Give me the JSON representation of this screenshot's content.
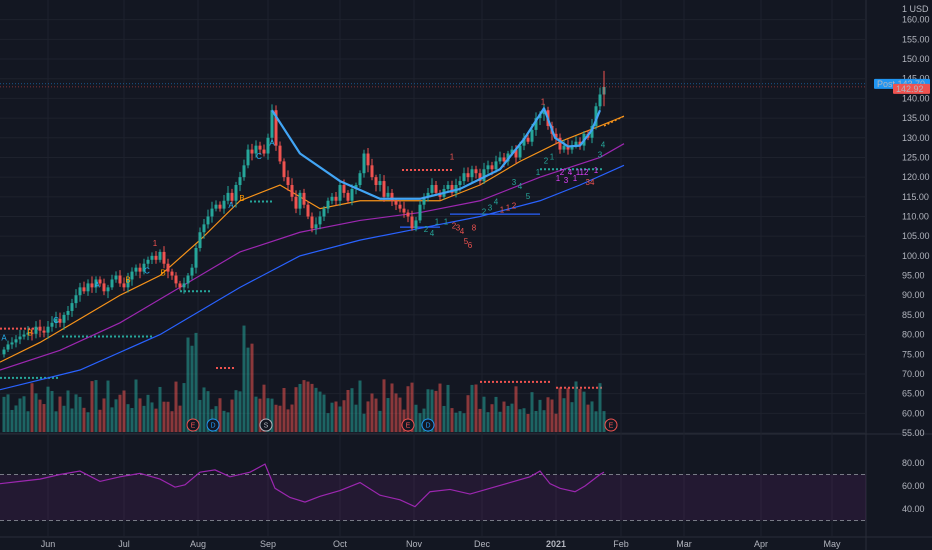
{
  "chart_data": {
    "type": "candlestick",
    "currency": "USD",
    "y_axis_unit_label": "1",
    "price_ylim": [
      55,
      165
    ],
    "price_ticks": [
      "160.00",
      "155.00",
      "150.00",
      "145.00",
      "140.00",
      "135.00",
      "130.00",
      "125.00",
      "120.00",
      "115.00",
      "110.00",
      "105.00",
      "100.00",
      "95.00",
      "90.00",
      "85.00",
      "80.00",
      "75.00",
      "70.00",
      "65.00",
      "60.00",
      "55.00"
    ],
    "x_ticks": [
      "Jun",
      "Jul",
      "Aug",
      "Sep",
      "Oct",
      "Nov",
      "Dec",
      "2021",
      "Feb",
      "Mar",
      "Apr",
      "May"
    ],
    "last_price_tags": [
      {
        "label": "Post",
        "value": "143.70",
        "color": "#2196f3"
      },
      {
        "label": "",
        "value": "142.92",
        "color": "#ef5350"
      }
    ],
    "close_series": [
      [
        0,
        75
      ],
      [
        4,
        76.2
      ],
      [
        8,
        77.5
      ],
      [
        12,
        78
      ],
      [
        16,
        78.8
      ],
      [
        20,
        79.5
      ],
      [
        24,
        80
      ],
      [
        28,
        80.5
      ],
      [
        32,
        80.2
      ],
      [
        36,
        82
      ],
      [
        40,
        81
      ],
      [
        44,
        80.5
      ],
      [
        48,
        82
      ],
      [
        52,
        83
      ],
      [
        56,
        84
      ],
      [
        60,
        83
      ],
      [
        64,
        85
      ],
      [
        68,
        86
      ],
      [
        72,
        88
      ],
      [
        76,
        90
      ],
      [
        80,
        92
      ],
      [
        84,
        91
      ],
      [
        88,
        93
      ],
      [
        92,
        92
      ],
      [
        96,
        94
      ],
      [
        100,
        93
      ],
      [
        104,
        91
      ],
      [
        108,
        92
      ],
      [
        112,
        94
      ],
      [
        116,
        95
      ],
      [
        120,
        93
      ],
      [
        124,
        92
      ],
      [
        128,
        94
      ],
      [
        132,
        96
      ],
      [
        136,
        97
      ],
      [
        140,
        96
      ],
      [
        144,
        98
      ],
      [
        148,
        99
      ],
      [
        152,
        100
      ],
      [
        156,
        99
      ],
      [
        160,
        101
      ],
      [
        164,
        98
      ],
      [
        168,
        96
      ],
      [
        172,
        95
      ],
      [
        176,
        93
      ],
      [
        180,
        92
      ],
      [
        184,
        93
      ],
      [
        188,
        95
      ],
      [
        192,
        97
      ],
      [
        196,
        102
      ],
      [
        200,
        106
      ],
      [
        204,
        108
      ],
      [
        208,
        110
      ],
      [
        212,
        112
      ],
      [
        216,
        113
      ],
      [
        220,
        112
      ],
      [
        224,
        114
      ],
      [
        228,
        116
      ],
      [
        232,
        114
      ],
      [
        236,
        118
      ],
      [
        240,
        120
      ],
      [
        244,
        123
      ],
      [
        248,
        127
      ],
      [
        252,
        126
      ],
      [
        256,
        128
      ],
      [
        260,
        127
      ],
      [
        264,
        126
      ],
      [
        268,
        130
      ],
      [
        272,
        137
      ],
      [
        276,
        128
      ],
      [
        280,
        124
      ],
      [
        284,
        120
      ],
      [
        288,
        118
      ],
      [
        292,
        115
      ],
      [
        296,
        112
      ],
      [
        300,
        116
      ],
      [
        304,
        113
      ],
      [
        308,
        110
      ],
      [
        312,
        107
      ],
      [
        316,
        108
      ],
      [
        320,
        110
      ],
      [
        324,
        112
      ],
      [
        328,
        114
      ],
      [
        332,
        115
      ],
      [
        336,
        114
      ],
      [
        340,
        118
      ],
      [
        344,
        116
      ],
      [
        348,
        114
      ],
      [
        352,
        117
      ],
      [
        356,
        118
      ],
      [
        360,
        121
      ],
      [
        364,
        126
      ],
      [
        368,
        123
      ],
      [
        372,
        120
      ],
      [
        376,
        118
      ],
      [
        380,
        119
      ],
      [
        384,
        115
      ],
      [
        388,
        116
      ],
      [
        392,
        114
      ],
      [
        396,
        113
      ],
      [
        400,
        112
      ],
      [
        404,
        111
      ],
      [
        408,
        110
      ],
      [
        412,
        107
      ],
      [
        416,
        109
      ],
      [
        420,
        113
      ],
      [
        424,
        115
      ],
      [
        428,
        116
      ],
      [
        432,
        118
      ],
      [
        436,
        116
      ],
      [
        440,
        115
      ],
      [
        444,
        117
      ],
      [
        448,
        118
      ],
      [
        452,
        116
      ],
      [
        456,
        118
      ],
      [
        460,
        119
      ],
      [
        464,
        121
      ],
      [
        468,
        120
      ],
      [
        472,
        122
      ],
      [
        476,
        121
      ],
      [
        480,
        119
      ],
      [
        484,
        122
      ],
      [
        488,
        123
      ],
      [
        492,
        122
      ],
      [
        496,
        124
      ],
      [
        500,
        125
      ],
      [
        504,
        124
      ],
      [
        508,
        126
      ],
      [
        512,
        127
      ],
      [
        516,
        125
      ],
      [
        520,
        128
      ],
      [
        524,
        130
      ],
      [
        528,
        129
      ],
      [
        532,
        132
      ],
      [
        536,
        135
      ],
      [
        540,
        136
      ],
      [
        544,
        137
      ],
      [
        548,
        133
      ],
      [
        552,
        131
      ],
      [
        556,
        130
      ],
      [
        560,
        127
      ],
      [
        564,
        128
      ],
      [
        568,
        127
      ],
      [
        572,
        128
      ],
      [
        576,
        129
      ],
      [
        580,
        128
      ],
      [
        584,
        131
      ],
      [
        588,
        130
      ],
      [
        592,
        133
      ],
      [
        596,
        138
      ],
      [
        600,
        141
      ],
      [
        604,
        142.9
      ]
    ],
    "moving_averages": [
      {
        "name": "",
        "color": "#f7931a",
        "values": [
          [
            0,
            73
          ],
          [
            40,
            78
          ],
          [
            80,
            84
          ],
          [
            120,
            90
          ],
          [
            160,
            95
          ],
          [
            200,
            104
          ],
          [
            240,
            114
          ],
          [
            280,
            118
          ],
          [
            320,
            112
          ],
          [
            360,
            114
          ],
          [
            400,
            114
          ],
          [
            440,
            114
          ],
          [
            480,
            118
          ],
          [
            520,
            124
          ],
          [
            560,
            129
          ],
          [
            600,
            133
          ],
          [
            624,
            135.5
          ]
        ]
      },
      {
        "name": "",
        "color": "#9c27b0",
        "values": [
          [
            0,
            71
          ],
          [
            60,
            76
          ],
          [
            120,
            83
          ],
          [
            180,
            92
          ],
          [
            240,
            101
          ],
          [
            300,
            106
          ],
          [
            360,
            109
          ],
          [
            420,
            111
          ],
          [
            480,
            114
          ],
          [
            540,
            120
          ],
          [
            600,
            125
          ],
          [
            624,
            128.5
          ]
        ]
      },
      {
        "name": "",
        "color": "#2962ff",
        "values": [
          [
            0,
            66
          ],
          [
            80,
            71
          ],
          [
            160,
            80
          ],
          [
            240,
            92
          ],
          [
            300,
            100
          ],
          [
            360,
            104
          ],
          [
            420,
            107
          ],
          [
            480,
            110
          ],
          [
            540,
            114
          ],
          [
            580,
            118
          ],
          [
            624,
            123
          ]
        ]
      }
    ],
    "cup_pattern": {
      "color": "#42a5f5",
      "points": [
        [
          272,
          137
        ],
        [
          300,
          126
        ],
        [
          340,
          119
        ],
        [
          380,
          114.5
        ],
        [
          420,
          114.5
        ],
        [
          460,
          117
        ],
        [
          500,
          122
        ],
        [
          525,
          130
        ],
        [
          544,
          137.5
        ],
        [
          555,
          130
        ],
        [
          568,
          127.8
        ],
        [
          580,
          128
        ],
        [
          592,
          132
        ],
        [
          600,
          137
        ]
      ]
    },
    "earnings_markers": [
      {
        "x": 193,
        "label": "E",
        "color": "#ef5350"
      },
      {
        "x": 213,
        "label": "D",
        "color": "#2196f3"
      },
      {
        "x": 266,
        "label": "S",
        "color": "#b2b5be"
      },
      {
        "x": 408,
        "label": "E",
        "color": "#ef5350"
      },
      {
        "x": 428,
        "label": "D",
        "color": "#2196f3"
      },
      {
        "x": 611,
        "label": "E",
        "color": "#ef5350"
      }
    ],
    "rsi": {
      "ylim": [
        20,
        100
      ],
      "ticks": [
        "80.00",
        "60.00",
        "40.00"
      ],
      "bands": [
        70,
        30
      ],
      "color": "#9c27b0",
      "values": [
        [
          0,
          62
        ],
        [
          20,
          64
        ],
        [
          40,
          66
        ],
        [
          60,
          70
        ],
        [
          80,
          73
        ],
        [
          100,
          64
        ],
        [
          120,
          68
        ],
        [
          140,
          71
        ],
        [
          160,
          66
        ],
        [
          175,
          59
        ],
        [
          185,
          61
        ],
        [
          200,
          72
        ],
        [
          215,
          74
        ],
        [
          230,
          68
        ],
        [
          250,
          72
        ],
        [
          265,
          79
        ],
        [
          275,
          58
        ],
        [
          290,
          50
        ],
        [
          305,
          46
        ],
        [
          320,
          51
        ],
        [
          340,
          56
        ],
        [
          360,
          63
        ],
        [
          380,
          52
        ],
        [
          400,
          48
        ],
        [
          415,
          42
        ],
        [
          430,
          55
        ],
        [
          450,
          57
        ],
        [
          470,
          53
        ],
        [
          490,
          58
        ],
        [
          510,
          63
        ],
        [
          530,
          68
        ],
        [
          540,
          73
        ],
        [
          550,
          62
        ],
        [
          560,
          58
        ],
        [
          575,
          55
        ],
        [
          585,
          60
        ],
        [
          600,
          70
        ],
        [
          604,
          72
        ]
      ]
    },
    "annotation_labels": [
      {
        "x": 4,
        "y": 78.5,
        "text": "A",
        "color": "#29b6f6"
      },
      {
        "x": 30,
        "y": 79.8,
        "text": "B",
        "color": "#ff9800"
      },
      {
        "x": 56,
        "y": 83,
        "text": "C",
        "color": "#29b6f6"
      },
      {
        "x": 97,
        "y": 92,
        "text": "A",
        "color": "#29b6f6"
      },
      {
        "x": 128,
        "y": 93.2,
        "text": "B",
        "color": "#ff9800"
      },
      {
        "x": 147,
        "y": 95.5,
        "text": "C",
        "color": "#29b6f6"
      },
      {
        "x": 155,
        "y": 102.5,
        "text": "1",
        "color": "#ef5350"
      },
      {
        "x": 163,
        "y": 95,
        "text": "B",
        "color": "#ff9800"
      },
      {
        "x": 231,
        "y": 112.2,
        "text": "A",
        "color": "#29b6f6"
      },
      {
        "x": 242,
        "y": 114,
        "text": "B",
        "color": "#ff9800"
      },
      {
        "x": 259,
        "y": 124.6,
        "text": "C",
        "color": "#29b6f6"
      },
      {
        "x": 272,
        "y": 128,
        "text": "A",
        "color": "#29b6f6"
      },
      {
        "x": 452,
        "y": 124.5,
        "text": "1",
        "color": "#ef5350"
      },
      {
        "x": 543,
        "y": 138.5,
        "text": "1",
        "color": "#ef5350"
      },
      {
        "x": 426,
        "y": 106,
        "text": "2",
        "color": "#26a69a"
      },
      {
        "x": 432,
        "y": 105,
        "text": "4",
        "color": "#26a69a"
      },
      {
        "x": 437,
        "y": 108,
        "text": "1",
        "color": "#26a69a"
      },
      {
        "x": 446,
        "y": 108,
        "text": "1",
        "color": "#26a69a"
      },
      {
        "x": 454,
        "y": 107,
        "text": "2",
        "color": "#ef5350"
      },
      {
        "x": 458,
        "y": 106.5,
        "text": "3",
        "color": "#ef5350"
      },
      {
        "x": 462,
        "y": 105.5,
        "text": "4",
        "color": "#ef5350"
      },
      {
        "x": 466,
        "y": 103,
        "text": "5",
        "color": "#ef5350"
      },
      {
        "x": 470,
        "y": 102,
        "text": "6",
        "color": "#ef5350"
      },
      {
        "x": 474,
        "y": 106.5,
        "text": "8",
        "color": "#ef5350"
      },
      {
        "x": 484,
        "y": 110.5,
        "text": "2",
        "color": "#26a69a"
      },
      {
        "x": 490,
        "y": 111.5,
        "text": "3",
        "color": "#26a69a"
      },
      {
        "x": 496,
        "y": 113,
        "text": "4",
        "color": "#26a69a"
      },
      {
        "x": 502,
        "y": 111,
        "text": "1",
        "color": "#ef5350"
      },
      {
        "x": 508,
        "y": 111.5,
        "text": "1",
        "color": "#ef5350"
      },
      {
        "x": 514,
        "y": 112,
        "text": "2",
        "color": "#ef5350"
      },
      {
        "x": 514,
        "y": 118,
        "text": "3",
        "color": "#26a69a"
      },
      {
        "x": 520,
        "y": 117,
        "text": "4",
        "color": "#26a69a"
      },
      {
        "x": 528,
        "y": 114.5,
        "text": "5",
        "color": "#26a69a"
      },
      {
        "x": 538,
        "y": 120.5,
        "text": "1",
        "color": "#26a69a"
      },
      {
        "x": 546,
        "y": 123.5,
        "text": "2",
        "color": "#26a69a"
      },
      {
        "x": 552,
        "y": 124.5,
        "text": "1",
        "color": "#26a69a"
      },
      {
        "x": 558,
        "y": 119,
        "text": "1",
        "color": "#e040fb"
      },
      {
        "x": 562,
        "y": 120.5,
        "text": "2",
        "color": "#e040fb"
      },
      {
        "x": 566,
        "y": 118.5,
        "text": "3",
        "color": "#e040fb"
      },
      {
        "x": 570,
        "y": 120.5,
        "text": "4",
        "color": "#e040fb"
      },
      {
        "x": 575,
        "y": 119,
        "text": "1",
        "color": "#e040fb"
      },
      {
        "x": 578,
        "y": 120.5,
        "text": "1",
        "color": "#e040fb"
      },
      {
        "x": 584,
        "y": 120.5,
        "text": "12",
        "color": "#e040fb"
      },
      {
        "x": 590,
        "y": 118,
        "text": "34",
        "color": "#ef5350"
      },
      {
        "x": 596,
        "y": 121,
        "text": "1",
        "color": "#e040fb"
      },
      {
        "x": 600,
        "y": 125,
        "text": "3",
        "color": "#26a69a"
      },
      {
        "x": 603,
        "y": 127.5,
        "text": "4",
        "color": "#26a69a"
      }
    ]
  }
}
